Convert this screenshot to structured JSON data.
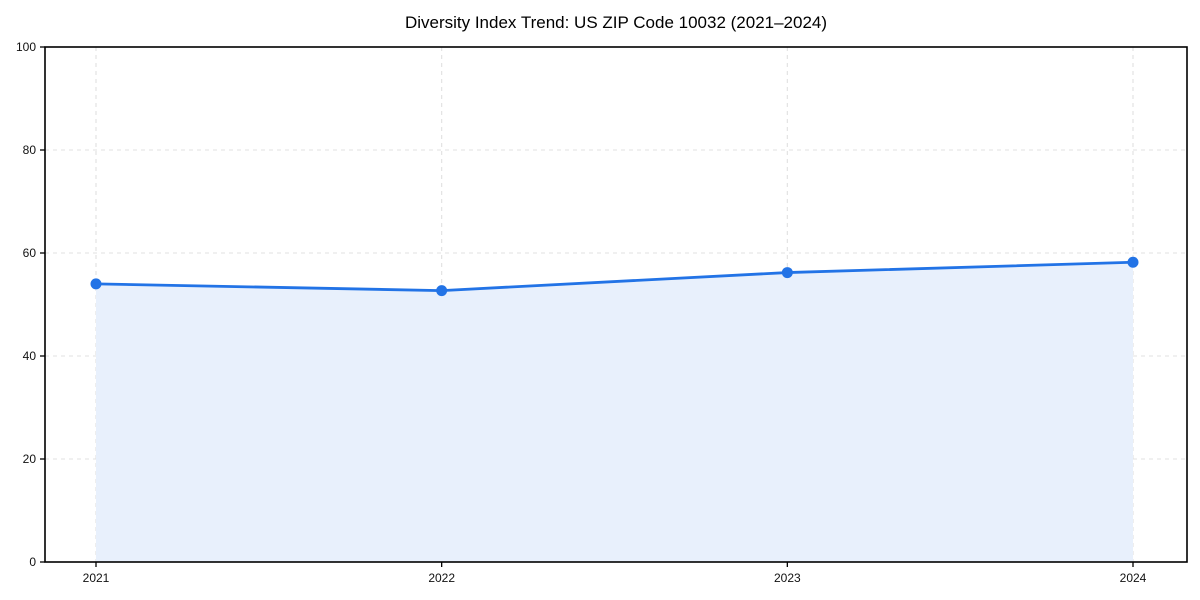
{
  "title": "Diversity Index Trend: US ZIP Code 10032 (2021–2024)",
  "chart_data": {
    "type": "area",
    "title": "Diversity Index Trend: US ZIP Code 10032 (2021–2024)",
    "x": [
      2021,
      2022,
      2023,
      2024
    ],
    "categories": [
      "2021",
      "2022",
      "2023",
      "2024"
    ],
    "values": [
      54.0,
      52.7,
      56.2,
      58.2
    ],
    "xlabel": "",
    "ylabel": "",
    "ylim": [
      0,
      100
    ],
    "yticks": [
      0,
      20,
      40,
      60,
      80,
      100
    ],
    "ytick_labels": [
      "0",
      "20",
      "40",
      "60",
      "80",
      "100"
    ],
    "grid": true,
    "grid_style": "dashed",
    "legend_position": "none",
    "colors": {
      "line": "#2273e6",
      "marker": "#2273e6",
      "area_fill": "#e8f0fc",
      "grid": "#e0e0e0",
      "axis": "#000000",
      "tick_text": "#111111"
    },
    "marker": "circle",
    "marker_size": 5.5,
    "line_width": 2.8
  }
}
